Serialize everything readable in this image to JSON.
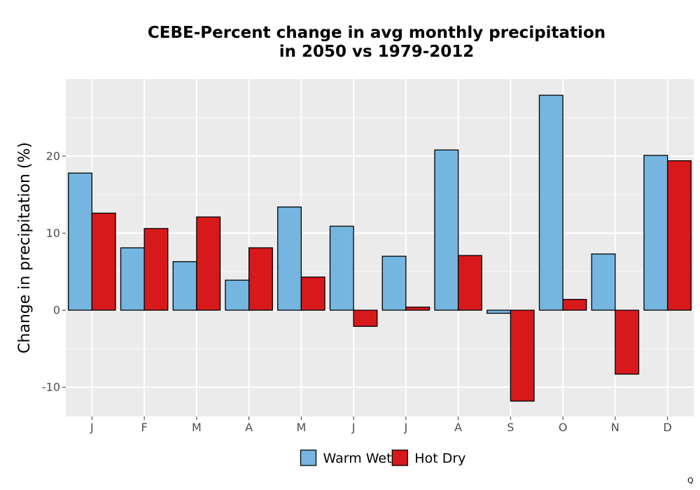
{
  "chart_data": {
    "type": "bar",
    "title_lines": [
      "CEBE-Percent change in avg monthly precipitation",
      "in 2050 vs 1979-2012"
    ],
    "xlabel": "",
    "ylabel": "Change in precipitation (%)",
    "categories": [
      "J",
      "F",
      "M",
      "A",
      "M",
      "J",
      "J",
      "A",
      "S",
      "O",
      "N",
      "D"
    ],
    "series": [
      {
        "name": "Warm Wet",
        "color": "#74b6e0",
        "values": [
          17.8,
          8.1,
          6.3,
          3.9,
          13.4,
          10.9,
          7.0,
          20.8,
          -0.4,
          27.9,
          7.3,
          20.1
        ]
      },
      {
        "name": "Hot Dry",
        "color": "#d7191c",
        "values": [
          12.6,
          10.6,
          12.1,
          8.1,
          4.3,
          -2.1,
          0.4,
          7.1,
          -11.8,
          1.4,
          -8.3,
          19.4
        ]
      }
    ],
    "ylim": [
      -13.8,
      30.0
    ],
    "yticks": [
      -10,
      0,
      10,
      20
    ],
    "ytick_labels": [
      "-10",
      "0",
      "10",
      "20"
    ],
    "grid": true,
    "panel_background": "#ebebeb",
    "legend_position": "bottom"
  },
  "corner_mark": "Q"
}
